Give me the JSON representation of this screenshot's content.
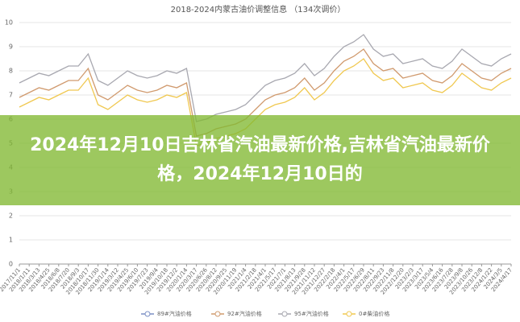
{
  "chart_data": {
    "type": "line",
    "title": "2018-2024内蒙古油价调整信息 （134次调价）",
    "categories": [
      "2017/11/1",
      "2018/1/11",
      "2018/3/13",
      "2018/4/25",
      "2018/6/8",
      "2018/7/20",
      "2018/9/3",
      "2018/10/17",
      "2018/11/30",
      "2019/1/14",
      "2019/3/12",
      "2019/4/25",
      "2019/6/10",
      "2019/7/23",
      "2019/9/4",
      "2019/10/18",
      "2019/12/2",
      "2020/1/14",
      "2020/3/17",
      "2020/6/26",
      "2020/8/12",
      "2020/9/25",
      "2020/11/19",
      "2021/1/4",
      "2021/2/18",
      "2021/4/1",
      "2021/5/17",
      "2021/7/1",
      "2021/8/13",
      "2021/9/28",
      "2021/11/12",
      "2021/12/27",
      "2022/2/18",
      "2022/4/1",
      "2022/5/17",
      "2022/6/29",
      "2022/8/11",
      "2022/9/23",
      "2022/11/8",
      "2022/12/20",
      "2023/2/3",
      "2023/3/17",
      "2023/5/4",
      "2023/6/16",
      "2023/7/28",
      "2023/9/8",
      "2023/10/26",
      "2023/12/8",
      "2024/1/22",
      "2024/3/5",
      "2024/4/17"
    ],
    "series": [
      {
        "name": "89#汽油价格",
        "color": "#7b8fc4",
        "values": [
          null,
          null,
          null,
          null,
          null,
          null,
          null,
          null,
          null,
          null,
          null,
          null,
          null,
          null,
          null,
          null,
          null,
          null,
          null,
          null,
          null,
          null,
          null,
          null,
          null,
          null,
          null,
          null,
          null,
          null,
          null,
          null,
          null,
          null,
          null,
          null,
          null,
          null,
          null,
          null,
          null,
          null,
          null,
          null,
          null,
          null,
          null,
          null,
          null,
          null,
          null
        ]
      },
      {
        "name": "92#汽油价格",
        "color": "#d09a6e",
        "values": [
          6.9,
          7.1,
          7.3,
          7.2,
          7.4,
          7.6,
          7.6,
          8.1,
          7.0,
          6.8,
          7.1,
          7.4,
          7.2,
          7.1,
          7.2,
          7.4,
          7.3,
          7.5,
          5.3,
          5.4,
          5.6,
          5.7,
          5.8,
          6.0,
          6.4,
          6.8,
          7.0,
          7.1,
          7.3,
          7.7,
          7.2,
          7.5,
          8.0,
          8.4,
          8.6,
          8.9,
          8.3,
          8.0,
          8.1,
          7.7,
          7.8,
          7.9,
          7.6,
          7.5,
          7.8,
          8.3,
          8.0,
          7.7,
          7.6,
          7.9,
          8.1
        ]
      },
      {
        "name": "95#汽油价格",
        "color": "#a8a8b0",
        "values": [
          7.5,
          7.7,
          7.9,
          7.8,
          8.0,
          8.2,
          8.2,
          8.7,
          7.6,
          7.4,
          7.7,
          8.0,
          7.8,
          7.7,
          7.8,
          8.0,
          7.9,
          8.1,
          5.9,
          6.0,
          6.2,
          6.3,
          6.4,
          6.6,
          7.0,
          7.4,
          7.6,
          7.7,
          7.9,
          8.3,
          7.8,
          8.1,
          8.6,
          9.0,
          9.2,
          9.5,
          8.9,
          8.6,
          8.7,
          8.3,
          8.4,
          8.5,
          8.2,
          8.1,
          8.4,
          8.9,
          8.6,
          8.3,
          8.2,
          8.5,
          8.7
        ]
      },
      {
        "name": "0#柴油价格",
        "color": "#f0c850",
        "values": [
          6.5,
          6.7,
          6.9,
          6.8,
          7.0,
          7.2,
          7.2,
          7.7,
          6.6,
          6.4,
          6.7,
          7.0,
          6.8,
          6.7,
          6.8,
          7.0,
          6.9,
          7.1,
          4.9,
          5.0,
          5.2,
          5.3,
          5.4,
          5.6,
          6.0,
          6.4,
          6.6,
          6.7,
          6.9,
          7.3,
          6.8,
          7.1,
          7.6,
          8.0,
          8.2,
          8.5,
          7.9,
          7.6,
          7.7,
          7.3,
          7.4,
          7.5,
          7.2,
          7.1,
          7.4,
          7.9,
          7.6,
          7.3,
          7.2,
          7.5,
          7.7
        ]
      }
    ],
    "ylim": [
      0,
      10
    ],
    "yticks": [
      0,
      1,
      2,
      3,
      4,
      5,
      6,
      7,
      8,
      9,
      10
    ],
    "grid": true
  },
  "overlay_title": "2024年12月10日吉林省汽油最新价格,吉林省汽油最新价格，2024年12月10日的"
}
